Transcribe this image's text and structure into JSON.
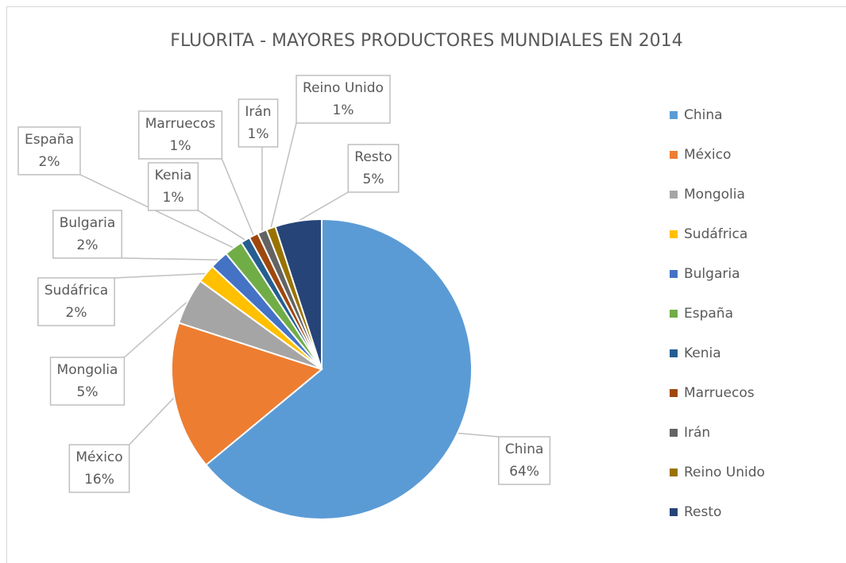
{
  "chart_data": {
    "type": "pie",
    "title": "FLUORITA - MAYORES PRODUCTORES MUNDIALES EN 2014",
    "categories": [
      "China",
      "México",
      "Mongolia",
      "Sudáfrica",
      "Bulgaria",
      "España",
      "Kenia",
      "Marruecos",
      "Irán",
      "Reino Unido",
      "Resto"
    ],
    "values": [
      64,
      16,
      5,
      2,
      2,
      2,
      1,
      1,
      1,
      1,
      5
    ],
    "value_labels": [
      "64%",
      "16%",
      "5%",
      "2%",
      "2%",
      "2%",
      "1%",
      "1%",
      "1%",
      "1%",
      "5%"
    ],
    "colors": [
      "#5b9bd5",
      "#ed7d31",
      "#a5a5a5",
      "#ffc000",
      "#4472c4",
      "#70ad47",
      "#255e91",
      "#9e480e",
      "#636363",
      "#997300",
      "#264478"
    ],
    "legend": "right"
  }
}
